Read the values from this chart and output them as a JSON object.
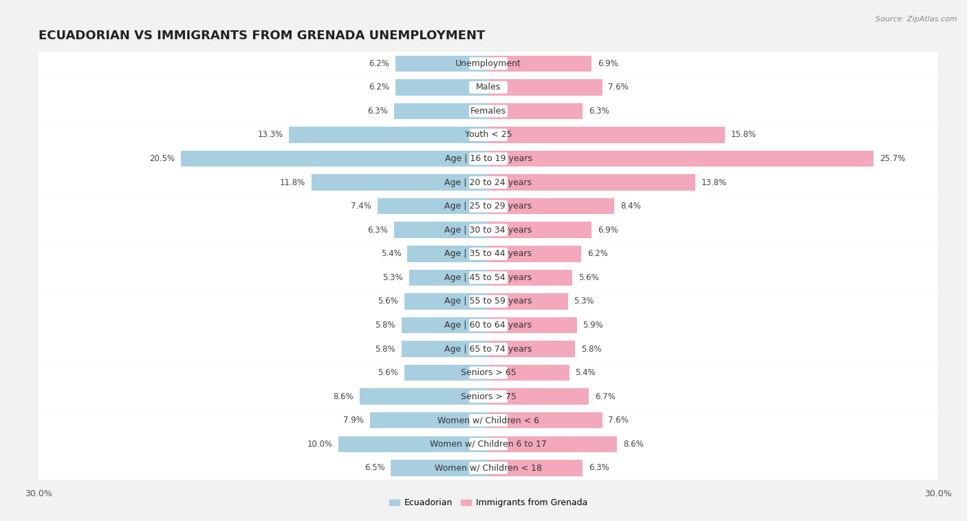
{
  "title": "ECUADORIAN VS IMMIGRANTS FROM GRENADA UNEMPLOYMENT",
  "source": "Source: ZipAtlas.com",
  "categories": [
    "Unemployment",
    "Males",
    "Females",
    "Youth < 25",
    "Age | 16 to 19 years",
    "Age | 20 to 24 years",
    "Age | 25 to 29 years",
    "Age | 30 to 34 years",
    "Age | 35 to 44 years",
    "Age | 45 to 54 years",
    "Age | 55 to 59 years",
    "Age | 60 to 64 years",
    "Age | 65 to 74 years",
    "Seniors > 65",
    "Seniors > 75",
    "Women w/ Children < 6",
    "Women w/ Children 6 to 17",
    "Women w/ Children < 18"
  ],
  "ecuadorian": [
    6.2,
    6.2,
    6.3,
    13.3,
    20.5,
    11.8,
    7.4,
    6.3,
    5.4,
    5.3,
    5.6,
    5.8,
    5.8,
    5.6,
    8.6,
    7.9,
    10.0,
    6.5
  ],
  "grenada": [
    6.9,
    7.6,
    6.3,
    15.8,
    25.7,
    13.8,
    8.4,
    6.9,
    6.2,
    5.6,
    5.3,
    5.9,
    5.8,
    5.4,
    6.7,
    7.6,
    8.6,
    6.3
  ],
  "ecuadorian_color": "#a8cfe0",
  "grenada_color": "#f4a8bc",
  "row_bg_color": "#e8e8e8",
  "plot_bg_color": "#f2f2f2",
  "axis_limit": 30.0,
  "legend_label_ecuadorian": "Ecuadorian",
  "legend_label_grenada": "Immigrants from Grenada",
  "title_fontsize": 13,
  "label_fontsize": 9,
  "value_fontsize": 8.5,
  "bar_height": 0.68
}
